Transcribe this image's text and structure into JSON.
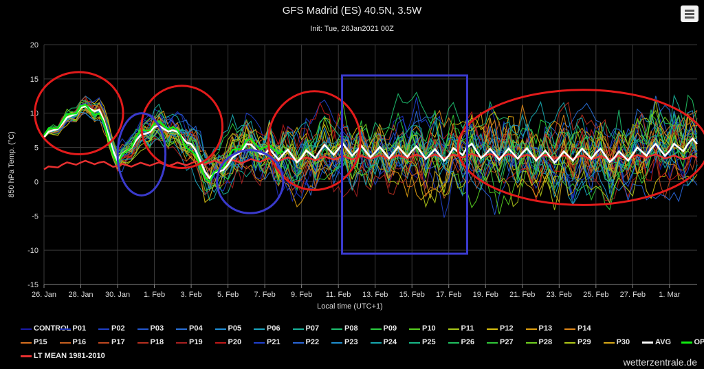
{
  "header": {
    "title": "GFS Madrid (ES) 40.5N, 3.5W",
    "subtitle": "Init: Tue, 26Jan2021 00Z"
  },
  "watermark": "wetterzentrale.de",
  "menu": {
    "icon": "hamburger-menu-icon"
  },
  "chart_data": {
    "type": "line",
    "title": "GFS Madrid (ES) 40.5N, 3.5W",
    "subtitle": "Init: Tue, 26Jan2021 00Z",
    "xlabel": "Local time (UTC+1)",
    "ylabel": "850 hPa Temp. (°C)",
    "ylim": [
      -15,
      20
    ],
    "yticks": [
      20,
      15,
      10,
      5,
      0,
      -5,
      -10,
      -15
    ],
    "xlim_days": [
      0,
      35.5
    ],
    "xticks": [
      {
        "day": 0,
        "label": "26. Jan"
      },
      {
        "day": 2,
        "label": "28. Jan"
      },
      {
        "day": 4,
        "label": "30. Jan"
      },
      {
        "day": 6,
        "label": "1. Feb"
      },
      {
        "day": 8,
        "label": "3. Feb"
      },
      {
        "day": 10,
        "label": "5. Feb"
      },
      {
        "day": 12,
        "label": "7. Feb"
      },
      {
        "day": 14,
        "label": "9. Feb"
      },
      {
        "day": 16,
        "label": "11. Feb"
      },
      {
        "day": 18,
        "label": "13. Feb"
      },
      {
        "day": 20,
        "label": "15. Feb"
      },
      {
        "day": 22,
        "label": "17. Feb"
      },
      {
        "day": 24,
        "label": "19. Feb"
      },
      {
        "day": 26,
        "label": "21. Feb"
      },
      {
        "day": 28,
        "label": "23. Feb"
      },
      {
        "day": 30,
        "label": "25. Feb"
      },
      {
        "day": 32,
        "label": "27. Feb"
      },
      {
        "day": 34,
        "label": "1. Mar"
      }
    ],
    "grid": true,
    "legend_position": "bottom",
    "series": [
      {
        "name": "CONTROL",
        "color": "#1a1aa8"
      },
      {
        "name": "P01",
        "color": "#1c2fb8"
      },
      {
        "name": "P02",
        "color": "#2040c8"
      },
      {
        "name": "P03",
        "color": "#2458d0"
      },
      {
        "name": "P04",
        "color": "#2a70d8"
      },
      {
        "name": "P05",
        "color": "#1f8fd8"
      },
      {
        "name": "P06",
        "color": "#1aa6c0"
      },
      {
        "name": "P07",
        "color": "#18b39a"
      },
      {
        "name": "P08",
        "color": "#1ec070"
      },
      {
        "name": "P09",
        "color": "#2ccf40"
      },
      {
        "name": "P10",
        "color": "#58d020"
      },
      {
        "name": "P11",
        "color": "#a8c818"
      },
      {
        "name": "P12",
        "color": "#d8c010"
      },
      {
        "name": "P13",
        "color": "#e0a010"
      },
      {
        "name": "P14",
        "color": "#e08818"
      },
      {
        "name": "P15",
        "color": "#d87020"
      },
      {
        "name": "P16",
        "color": "#c86020"
      },
      {
        "name": "P17",
        "color": "#c04820"
      },
      {
        "name": "P18",
        "color": "#b83020"
      },
      {
        "name": "P19",
        "color": "#a82020"
      },
      {
        "name": "P20",
        "color": "#c01818"
      },
      {
        "name": "P21",
        "color": "#2040d0"
      },
      {
        "name": "P22",
        "color": "#2a66d8"
      },
      {
        "name": "P23",
        "color": "#2090d0"
      },
      {
        "name": "P24",
        "color": "#18a8b0"
      },
      {
        "name": "P25",
        "color": "#18b888"
      },
      {
        "name": "P26",
        "color": "#20c060"
      },
      {
        "name": "P27",
        "color": "#30c838"
      },
      {
        "name": "P28",
        "color": "#70d020"
      },
      {
        "name": "P29",
        "color": "#b0c818"
      },
      {
        "name": "P30",
        "color": "#d8a818"
      },
      {
        "name": "AVG",
        "color": "#ffffff"
      },
      {
        "name": "OPER",
        "color": "#11ee11"
      },
      {
        "name": "LT MEAN 1981-2010",
        "color": "#e83030"
      }
    ],
    "avg_values_daily": [
      6.5,
      8.5,
      10.8,
      10.5,
      3.0,
      6.0,
      8.0,
      7.5,
      5.5,
      0.5,
      2.5,
      5.5,
      4.0,
      4.0,
      3.5,
      4.5,
      4.8,
      4.5,
      4.3,
      4.2,
      4.5,
      4.0,
      3.8,
      5.0,
      4.0,
      4.0,
      4.2,
      3.8,
      3.5,
      4.0,
      4.2,
      3.5,
      4.0,
      4.8,
      4.5,
      5.5
    ],
    "oper_values_daily": [
      6.8,
      8.8,
      11.0,
      10.0,
      2.5,
      6.5,
      8.5,
      8.0,
      4.5,
      0.0,
      3.5,
      6.0,
      5.0,
      4.5
    ],
    "lt_mean_values_daily": [
      1.8,
      2.5,
      2.8,
      2.8,
      2.3,
      2.5,
      2.6,
      2.5,
      2.7,
      2.8,
      2.9,
      3.0,
      3.2,
      3.3,
      3.3,
      3.4,
      3.5,
      3.5,
      3.6,
      3.6,
      3.7,
      3.7,
      3.7,
      3.8,
      3.8,
      3.8,
      3.7,
      3.7,
      3.6,
      3.6,
      3.5,
      3.5,
      3.6,
      3.8,
      3.6,
      3.5
    ],
    "annotations": [
      {
        "shape": "ellipse",
        "color": "#e31b1b",
        "center_day": 1.9,
        "center_value": 10,
        "rx_days": 2.4,
        "ry_value": 6.0
      },
      {
        "shape": "ellipse",
        "color": "#e31b1b",
        "center_day": 7.5,
        "center_value": 8,
        "rx_days": 2.2,
        "ry_value": 6.0
      },
      {
        "shape": "ellipse",
        "color": "#e31b1b",
        "center_day": 14.7,
        "center_value": 6,
        "rx_days": 2.5,
        "ry_value": 7.2
      },
      {
        "shape": "ellipse",
        "color": "#e31b1b",
        "center_day": 29.3,
        "center_value": 5,
        "rx_days": 6.8,
        "ry_value": 8.4
      },
      {
        "shape": "ellipse",
        "color": "#3a3acc",
        "center_day": 5.3,
        "center_value": 4,
        "rx_days": 1.3,
        "ry_value": 6.0
      },
      {
        "shape": "ellipse",
        "color": "#3a3acc",
        "center_day": 11.2,
        "center_value": 0,
        "rx_days": 1.8,
        "ry_value": 4.6
      },
      {
        "shape": "rect",
        "color": "#3a3acc",
        "day_from": 16.2,
        "day_to": 23.0,
        "value_from": -10.5,
        "value_to": 15.5
      }
    ]
  }
}
